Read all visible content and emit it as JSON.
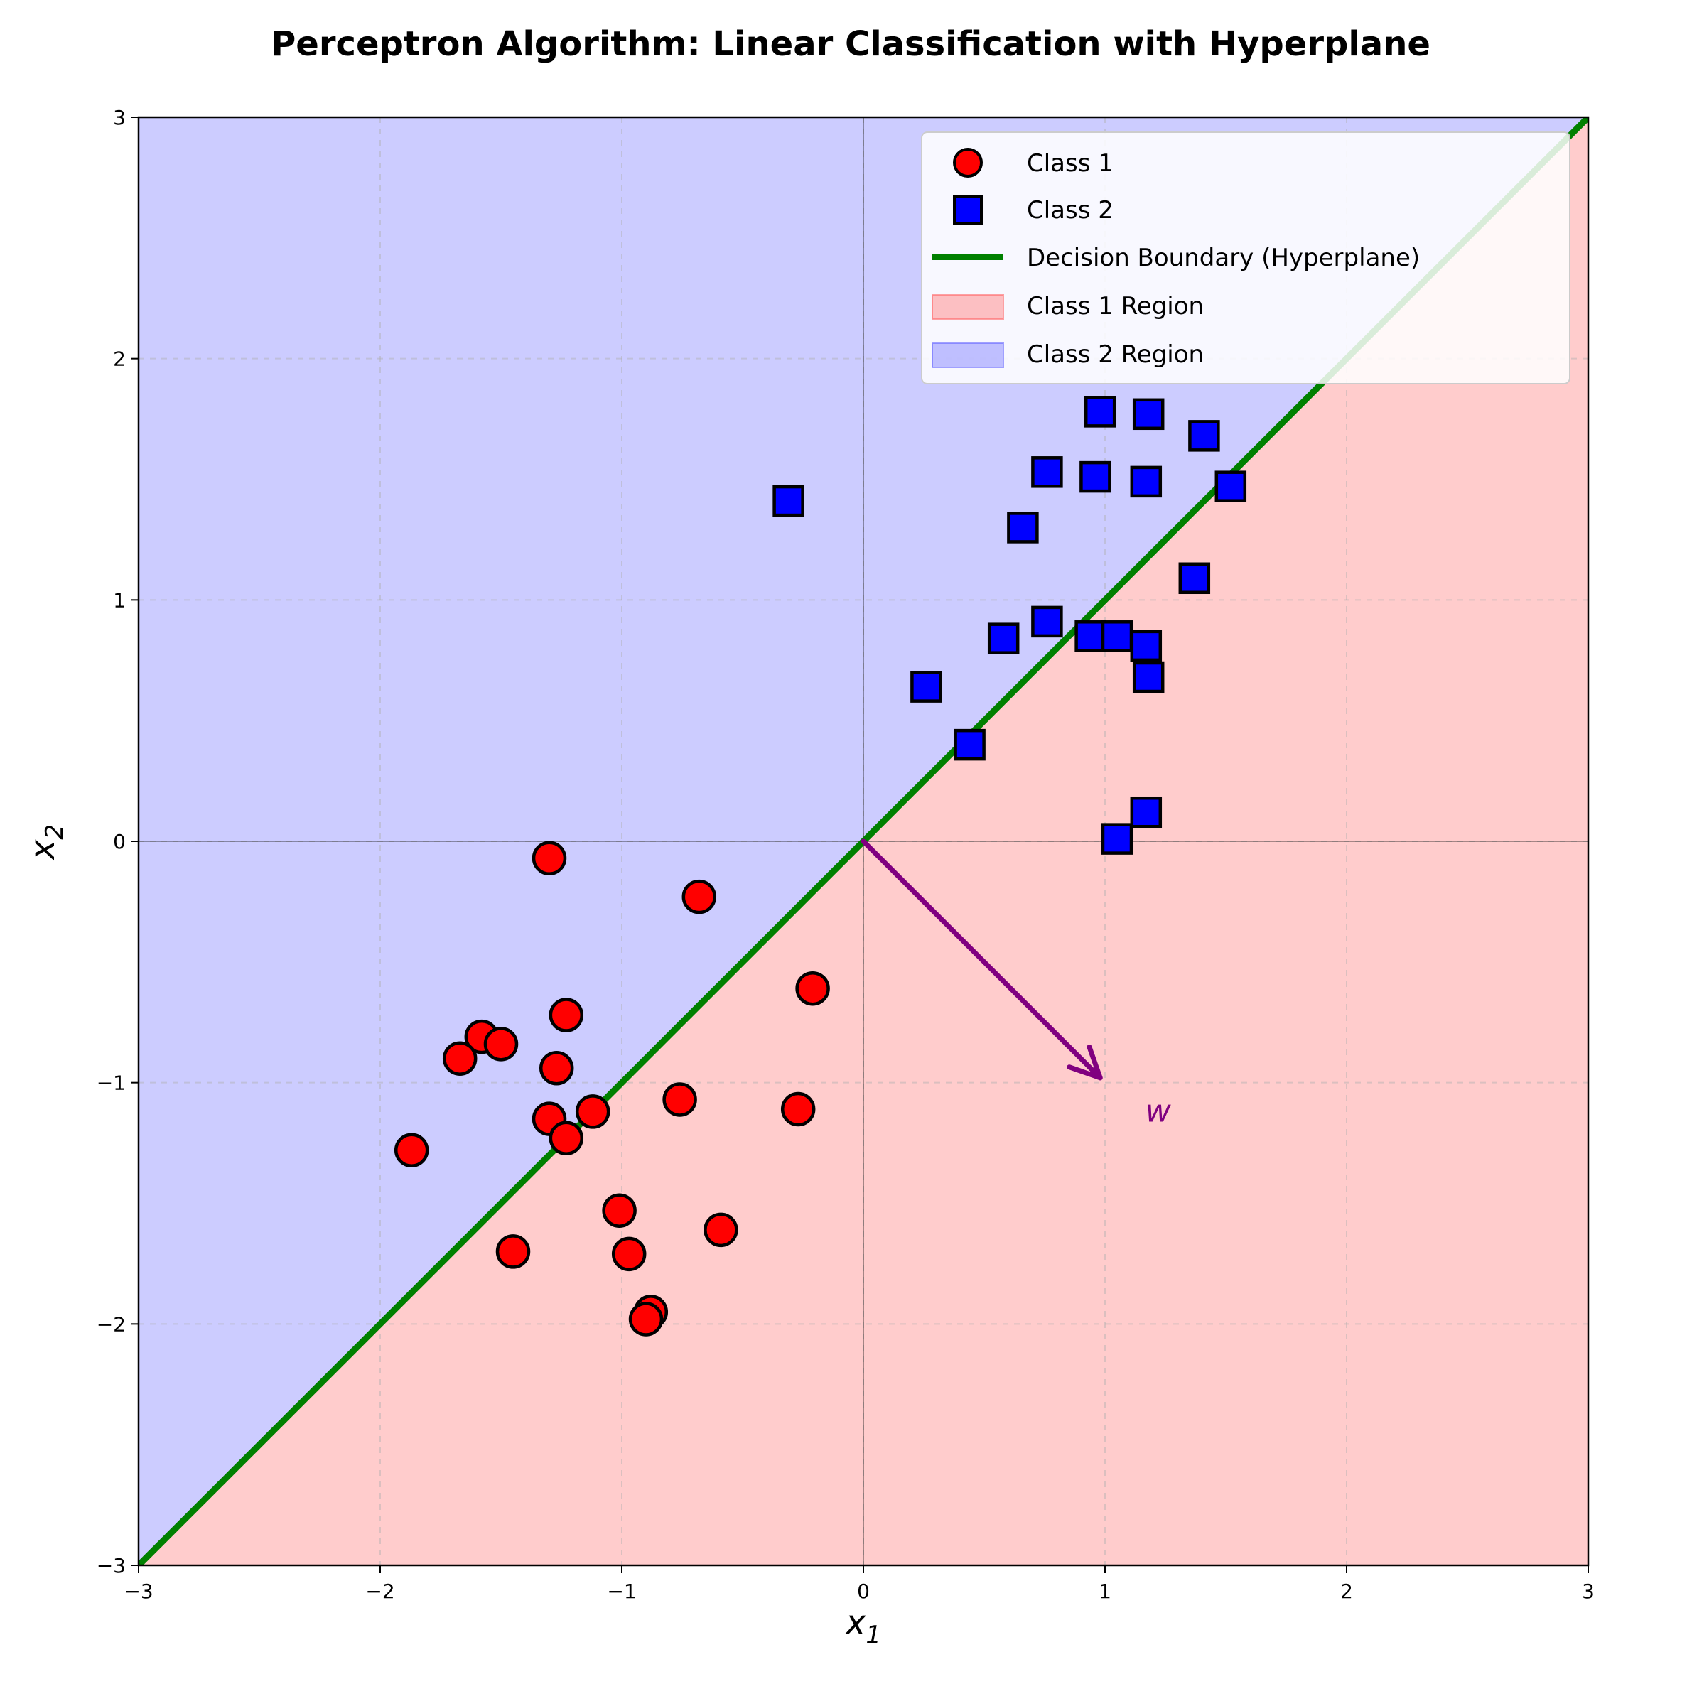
{
  "chart_data": {
    "type": "scatter",
    "title": "Perceptron Algorithm: Linear Classification with Hyperplane",
    "xlabel": "x",
    "xlabel_sub": "1",
    "ylabel": "x",
    "ylabel_sub": "2",
    "xlim": [
      -3,
      3
    ],
    "ylim": [
      -3,
      3
    ],
    "xticks": [
      -3,
      -2,
      -1,
      0,
      1,
      2,
      3
    ],
    "yticks": [
      -3,
      -2,
      -1,
      0,
      1,
      2,
      3
    ],
    "xtick_labels": [
      "−3",
      "−2",
      "−1",
      "0",
      "1",
      "2",
      "3"
    ],
    "ytick_labels": [
      "−3",
      "−2",
      "−1",
      "0",
      "1",
      "2",
      "3"
    ],
    "grid": true,
    "legend_position": "top-right",
    "series": [
      {
        "name": "Class 1",
        "marker": "circle",
        "color": "#ff0000",
        "points": [
          [
            -1.3,
            -0.07
          ],
          [
            -0.68,
            -0.23
          ],
          [
            -0.21,
            -0.61
          ],
          [
            -1.23,
            -0.72
          ],
          [
            -1.58,
            -0.81
          ],
          [
            -1.5,
            -0.84
          ],
          [
            -1.67,
            -0.9
          ],
          [
            -1.27,
            -0.94
          ],
          [
            -1.3,
            -1.15
          ],
          [
            -1.12,
            -1.12
          ],
          [
            -0.76,
            -1.07
          ],
          [
            -0.27,
            -1.11
          ],
          [
            -1.23,
            -1.23
          ],
          [
            -1.87,
            -1.28
          ],
          [
            -1.01,
            -1.53
          ],
          [
            -0.97,
            -1.71
          ],
          [
            -1.45,
            -1.7
          ],
          [
            -0.59,
            -1.61
          ],
          [
            -0.88,
            -1.95
          ],
          [
            -0.9,
            -1.98
          ]
        ]
      },
      {
        "name": "Class 2",
        "marker": "square",
        "color": "#0000ff",
        "points": [
          [
            -0.31,
            1.41
          ],
          [
            0.98,
            1.78
          ],
          [
            1.18,
            1.77
          ],
          [
            1.41,
            1.68
          ],
          [
            0.76,
            1.53
          ],
          [
            0.96,
            1.51
          ],
          [
            1.17,
            1.49
          ],
          [
            1.52,
            1.47
          ],
          [
            0.66,
            1.3
          ],
          [
            1.37,
            1.09
          ],
          [
            0.76,
            0.91
          ],
          [
            0.58,
            0.84
          ],
          [
            0.94,
            0.85
          ],
          [
            1.05,
            0.85
          ],
          [
            1.17,
            0.81
          ],
          [
            1.18,
            0.68
          ],
          [
            0.26,
            0.64
          ],
          [
            0.44,
            0.4
          ],
          [
            1.17,
            0.12
          ],
          [
            1.05,
            0.01
          ]
        ]
      }
    ],
    "decision_boundary": {
      "name": "Decision Boundary (Hyperplane)",
      "color": "#008000",
      "equation": "x2 = x1",
      "points": [
        [
          -3,
          -3
        ],
        [
          3,
          3
        ]
      ]
    },
    "regions": [
      {
        "name": "Class 1 Region",
        "color": "#ff9999",
        "side": "below boundary"
      },
      {
        "name": "Class 2 Region",
        "color": "#9999ff",
        "side": "above boundary"
      }
    ],
    "weight_vector": {
      "label": "w",
      "color": "#800080",
      "from": [
        0,
        0
      ],
      "to": [
        0.98,
        -0.98
      ],
      "label_at": [
        1.22,
        -1.12
      ]
    },
    "legend": [
      {
        "label": "Class 1",
        "kind": "circle"
      },
      {
        "label": "Class 2",
        "kind": "square"
      },
      {
        "label": "Decision Boundary (Hyperplane)",
        "kind": "line"
      },
      {
        "label": "Class 1 Region",
        "kind": "patch-red"
      },
      {
        "label": "Class 2 Region",
        "kind": "patch-blue"
      }
    ]
  }
}
